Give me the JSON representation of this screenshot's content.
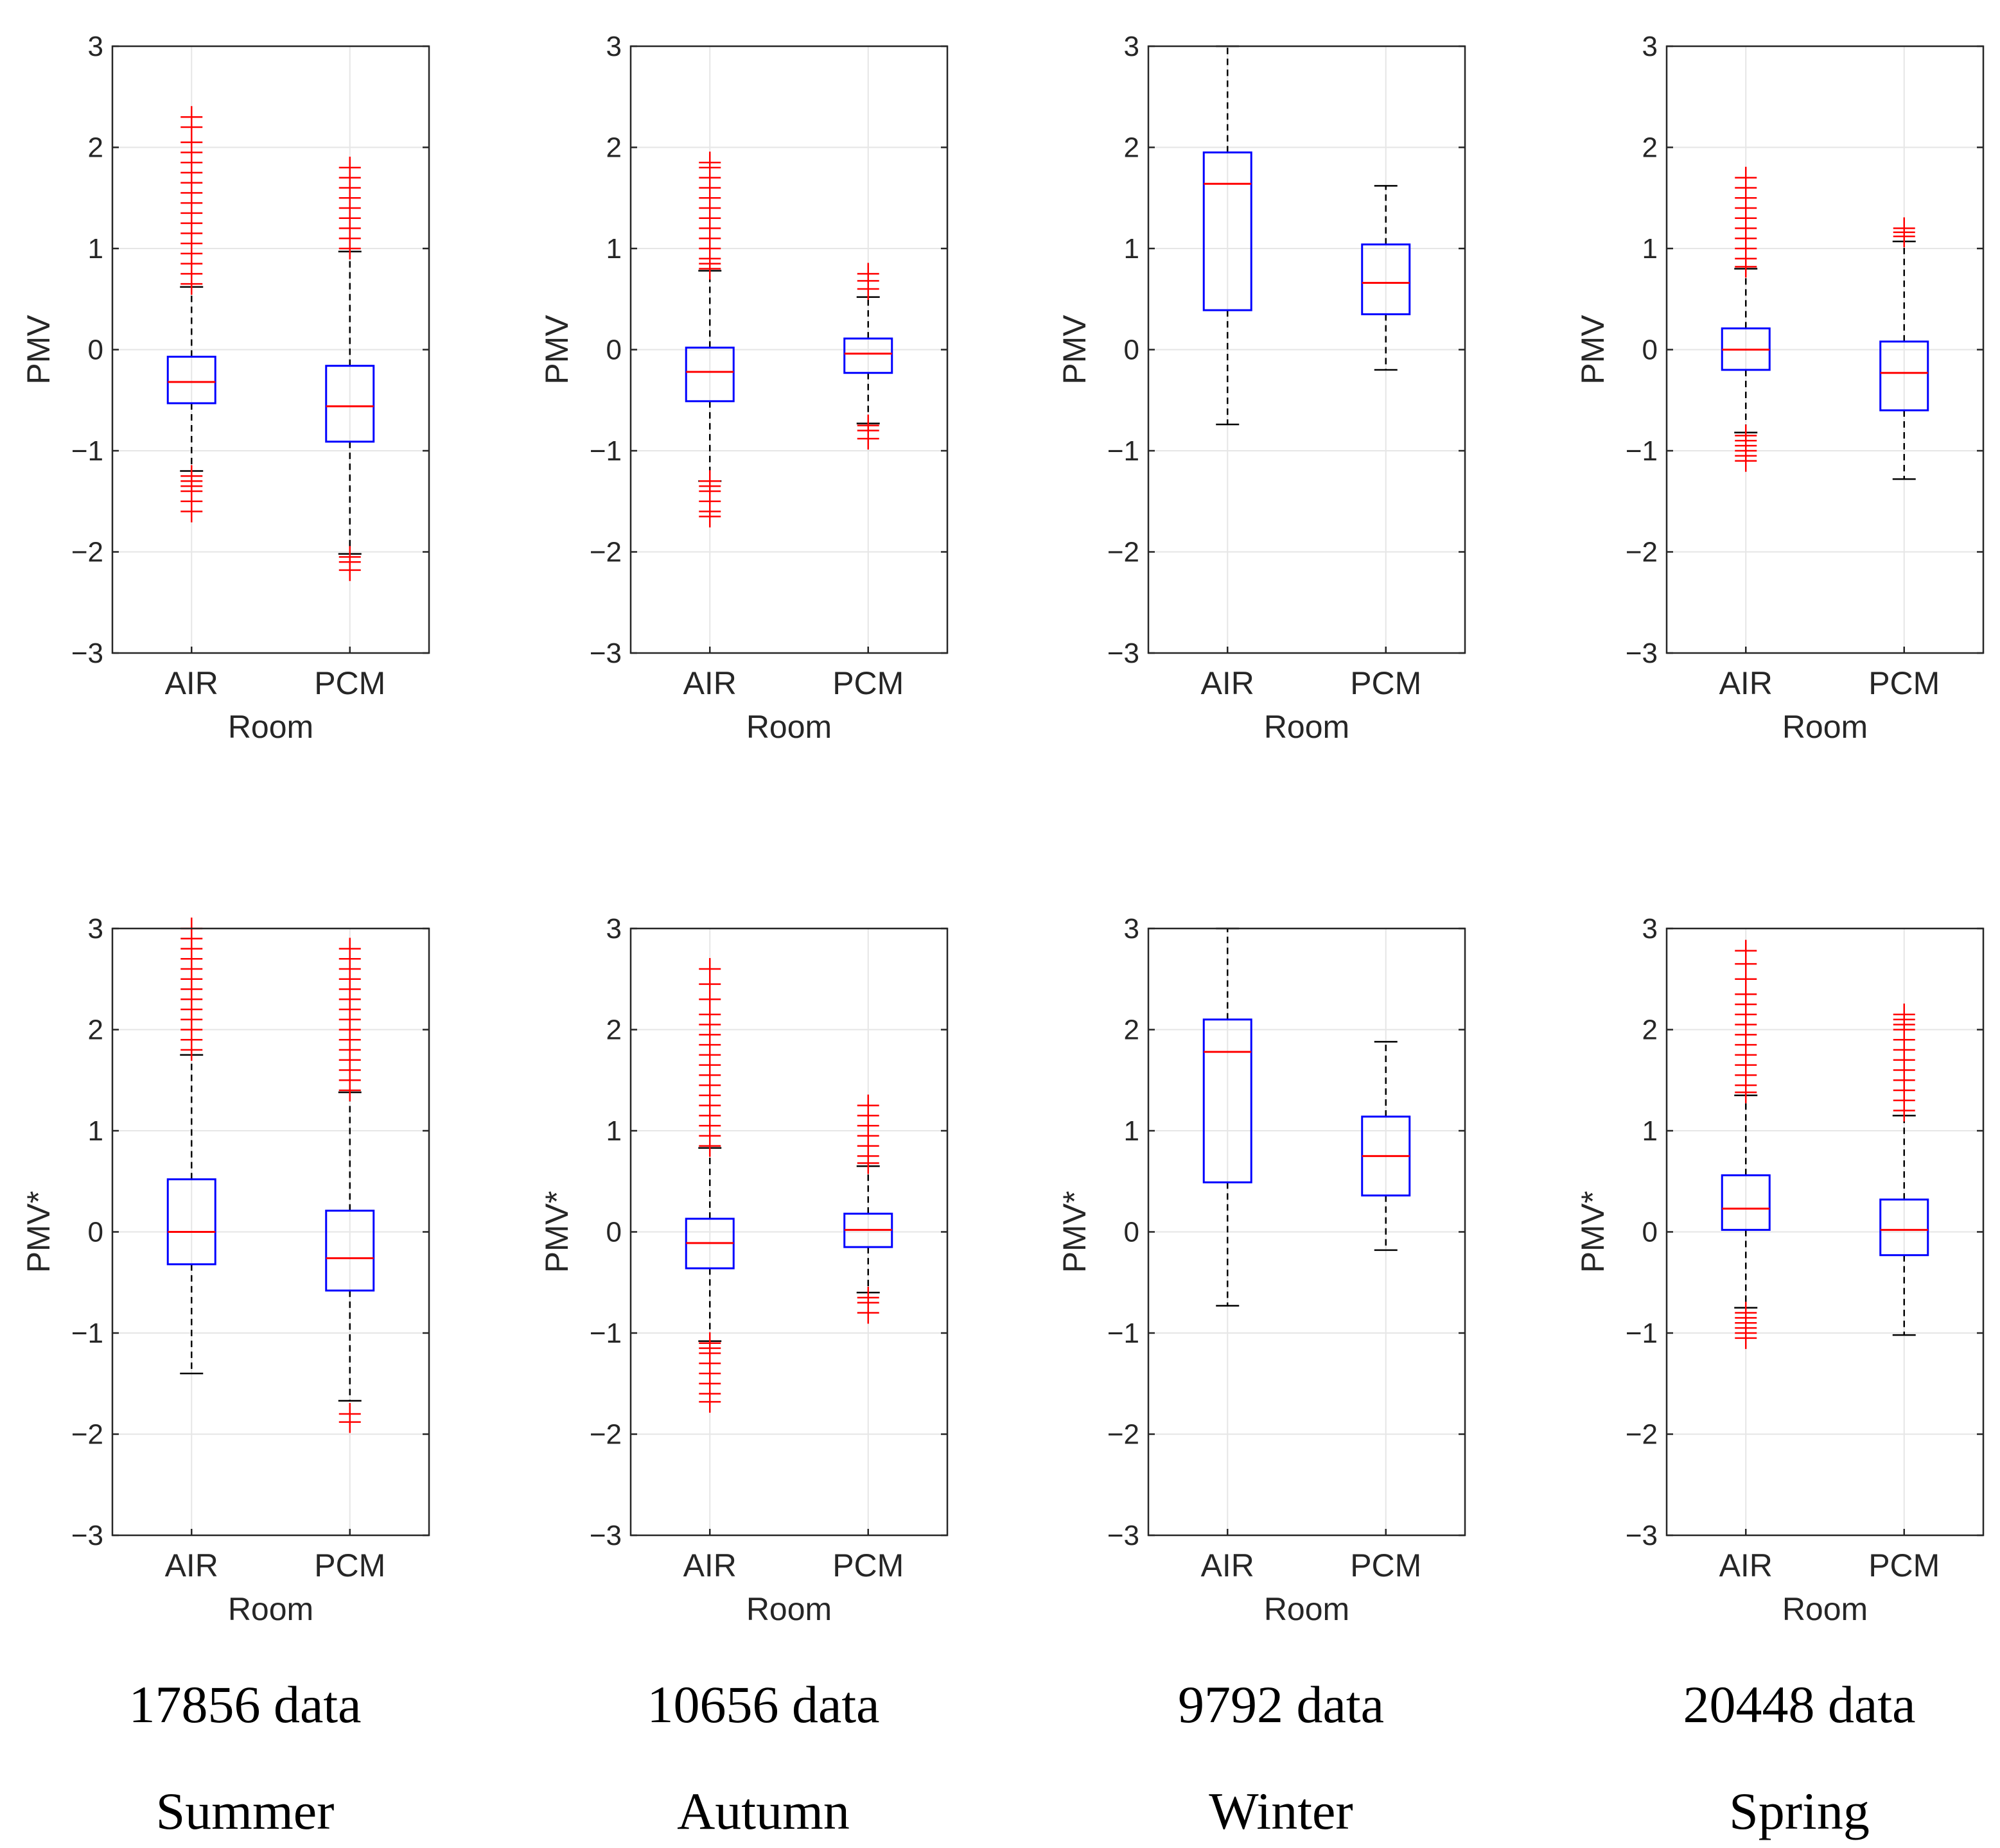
{
  "figure": {
    "columns": [
      {
        "count_label": "17856 data",
        "season": "Summer"
      },
      {
        "count_label": "10656 data",
        "season": "Autumn"
      },
      {
        "count_label": "9792 data",
        "season": "Winter"
      },
      {
        "count_label": "20448 data",
        "season": "Spring"
      }
    ]
  },
  "chart_data": [
    {
      "type": "box",
      "panel": "summer-pmv",
      "season": "Summer",
      "ylabel": "PMV",
      "xlabel": "Room",
      "categories": [
        "AIR",
        "PCM"
      ],
      "ylim": [
        -3,
        3
      ],
      "yticks": [
        "−3",
        "−2",
        "−1",
        "0",
        "1",
        "2",
        "3"
      ],
      "grid": true,
      "boxes": [
        {
          "name": "AIR",
          "whisker_low": -1.2,
          "q1": -0.53,
          "median": -0.32,
          "q3": -0.07,
          "whisker_high": 0.62,
          "outliers_high": [
            0.65,
            0.75,
            0.85,
            0.95,
            1.05,
            1.15,
            1.25,
            1.35,
            1.45,
            1.55,
            1.65,
            1.75,
            1.85,
            1.95,
            2.05,
            2.2,
            2.3
          ],
          "outliers_low": [
            -1.25,
            -1.3,
            -1.35,
            -1.4,
            -1.5,
            -1.6
          ]
        },
        {
          "name": "PCM",
          "whisker_low": -2.02,
          "q1": -0.91,
          "median": -0.56,
          "q3": -0.16,
          "whisker_high": 0.97,
          "outliers_high": [
            1.0,
            1.1,
            1.2,
            1.3,
            1.4,
            1.5,
            1.6,
            1.7,
            1.8
          ],
          "outliers_low": [
            -2.05,
            -2.1,
            -2.18
          ]
        }
      ]
    },
    {
      "type": "box",
      "panel": "autumn-pmv",
      "season": "Autumn",
      "ylabel": "PMV",
      "xlabel": "Room",
      "categories": [
        "AIR",
        "PCM"
      ],
      "ylim": [
        -3,
        3
      ],
      "yticks": [
        "−3",
        "−2",
        "−1",
        "0",
        "1",
        "2",
        "3"
      ],
      "grid": true,
      "boxes": [
        {
          "name": "AIR",
          "whisker_low": -1.3,
          "q1": -0.51,
          "median": -0.22,
          "q3": 0.02,
          "whisker_high": 0.78,
          "outliers_high": [
            0.8,
            0.85,
            0.9,
            1.0,
            1.1,
            1.2,
            1.3,
            1.4,
            1.5,
            1.6,
            1.7,
            1.8,
            1.85
          ],
          "outliers_low": [
            -1.3,
            -1.35,
            -1.4,
            -1.5,
            -1.6,
            -1.65
          ]
        },
        {
          "name": "PCM",
          "whisker_low": -0.73,
          "q1": -0.23,
          "median": -0.04,
          "q3": 0.11,
          "whisker_high": 0.52,
          "outliers_high": [
            0.6,
            0.68,
            0.75
          ],
          "outliers_low": [
            -0.75,
            -0.8,
            -0.88
          ]
        }
      ]
    },
    {
      "type": "box",
      "panel": "winter-pmv",
      "season": "Winter",
      "ylabel": "PMV",
      "xlabel": "Room",
      "categories": [
        "AIR",
        "PCM"
      ],
      "ylim": [
        -3,
        3
      ],
      "yticks": [
        "−3",
        "−2",
        "−1",
        "0",
        "1",
        "2",
        "3"
      ],
      "grid": true,
      "boxes": [
        {
          "name": "AIR",
          "whisker_low": -0.74,
          "q1": 0.39,
          "median": 1.64,
          "q3": 1.95,
          "whisker_high": 3.0,
          "outliers_high": [],
          "outliers_low": []
        },
        {
          "name": "PCM",
          "whisker_low": -0.2,
          "q1": 0.35,
          "median": 0.66,
          "q3": 1.04,
          "whisker_high": 1.62,
          "outliers_high": [],
          "outliers_low": []
        }
      ]
    },
    {
      "type": "box",
      "panel": "spring-pmv",
      "season": "Spring",
      "ylabel": "PMV",
      "xlabel": "Room",
      "categories": [
        "AIR",
        "PCM"
      ],
      "ylim": [
        -3,
        3
      ],
      "yticks": [
        "−3",
        "−2",
        "−1",
        "0",
        "1",
        "2",
        "3"
      ],
      "grid": true,
      "boxes": [
        {
          "name": "AIR",
          "whisker_low": -0.82,
          "q1": -0.2,
          "median": 0.0,
          "q3": 0.21,
          "whisker_high": 0.8,
          "outliers_high": [
            0.82,
            0.9,
            1.0,
            1.1,
            1.2,
            1.3,
            1.4,
            1.5,
            1.6,
            1.7
          ],
          "outliers_low": [
            -0.85,
            -0.9,
            -0.95,
            -1.0,
            -1.05,
            -1.1
          ]
        },
        {
          "name": "PCM",
          "whisker_low": -1.28,
          "q1": -0.6,
          "median": -0.23,
          "q3": 0.08,
          "whisker_high": 1.07,
          "outliers_high": [
            1.12,
            1.16,
            1.2
          ],
          "outliers_low": []
        }
      ]
    },
    {
      "type": "box",
      "panel": "summer-pmv-star",
      "season": "Summer",
      "ylabel": "PMV*",
      "xlabel": "Room",
      "categories": [
        "AIR",
        "PCM"
      ],
      "ylim": [
        -3,
        3
      ],
      "yticks": [
        "−3",
        "−2",
        "−1",
        "0",
        "1",
        "2",
        "3"
      ],
      "grid": true,
      "boxes": [
        {
          "name": "AIR",
          "whisker_low": -1.4,
          "q1": -0.32,
          "median": 0.0,
          "q3": 0.52,
          "whisker_high": 1.75,
          "outliers_high": [
            1.8,
            1.9,
            2.0,
            2.1,
            2.2,
            2.3,
            2.4,
            2.5,
            2.6,
            2.7,
            2.8,
            2.9,
            3.0
          ],
          "outliers_low": []
        },
        {
          "name": "PCM",
          "whisker_low": -1.67,
          "q1": -0.58,
          "median": -0.26,
          "q3": 0.21,
          "whisker_high": 1.38,
          "outliers_high": [
            1.4,
            1.5,
            1.6,
            1.7,
            1.8,
            1.9,
            2.0,
            2.1,
            2.2,
            2.3,
            2.4,
            2.5,
            2.6,
            2.7,
            2.8
          ],
          "outliers_low": [
            -1.8,
            -1.88
          ]
        }
      ]
    },
    {
      "type": "box",
      "panel": "autumn-pmv-star",
      "season": "Autumn",
      "ylabel": "PMV*",
      "xlabel": "Room",
      "categories": [
        "AIR",
        "PCM"
      ],
      "ylim": [
        -3,
        3
      ],
      "yticks": [
        "−3",
        "−2",
        "−1",
        "0",
        "1",
        "2",
        "3"
      ],
      "grid": true,
      "boxes": [
        {
          "name": "AIR",
          "whisker_low": -1.08,
          "q1": -0.36,
          "median": -0.11,
          "q3": 0.13,
          "whisker_high": 0.83,
          "outliers_high": [
            0.85,
            0.95,
            1.05,
            1.15,
            1.25,
            1.35,
            1.45,
            1.55,
            1.65,
            1.75,
            1.85,
            1.95,
            2.05,
            2.15,
            2.3,
            2.45,
            2.6
          ],
          "outliers_low": [
            -1.1,
            -1.15,
            -1.2,
            -1.3,
            -1.4,
            -1.5,
            -1.6,
            -1.68
          ]
        },
        {
          "name": "PCM",
          "whisker_low": -0.6,
          "q1": -0.15,
          "median": 0.02,
          "q3": 0.18,
          "whisker_high": 0.65,
          "outliers_high": [
            0.68,
            0.75,
            0.85,
            0.95,
            1.05,
            1.15,
            1.25
          ],
          "outliers_low": [
            -0.65,
            -0.7,
            -0.8
          ]
        }
      ]
    },
    {
      "type": "box",
      "panel": "winter-pmv-star",
      "season": "Winter",
      "ylabel": "PMV*",
      "xlabel": "Room",
      "categories": [
        "AIR",
        "PCM"
      ],
      "ylim": [
        -3,
        3
      ],
      "yticks": [
        "−3",
        "−2",
        "−1",
        "0",
        "1",
        "2",
        "3"
      ],
      "grid": true,
      "boxes": [
        {
          "name": "AIR",
          "whisker_low": -0.73,
          "q1": 0.49,
          "median": 1.78,
          "q3": 2.1,
          "whisker_high": 3.0,
          "outliers_high": [],
          "outliers_low": []
        },
        {
          "name": "PCM",
          "whisker_low": -0.18,
          "q1": 0.36,
          "median": 0.75,
          "q3": 1.14,
          "whisker_high": 1.88,
          "outliers_high": [],
          "outliers_low": []
        }
      ]
    },
    {
      "type": "box",
      "panel": "spring-pmv-star",
      "season": "Spring",
      "ylabel": "PMV*",
      "xlabel": "Room",
      "categories": [
        "AIR",
        "PCM"
      ],
      "ylim": [
        -3,
        3
      ],
      "yticks": [
        "−3",
        "−2",
        "−1",
        "0",
        "1",
        "2",
        "3"
      ],
      "grid": true,
      "boxes": [
        {
          "name": "AIR",
          "whisker_low": -0.75,
          "q1": 0.02,
          "median": 0.23,
          "q3": 0.56,
          "whisker_high": 1.35,
          "outliers_high": [
            1.38,
            1.45,
            1.55,
            1.65,
            1.75,
            1.85,
            1.95,
            2.05,
            2.15,
            2.25,
            2.35,
            2.5,
            2.65,
            2.78
          ],
          "outliers_low": [
            -0.8,
            -0.85,
            -0.9,
            -0.95,
            -1.0,
            -1.05
          ]
        },
        {
          "name": "PCM",
          "whisker_low": -1.02,
          "q1": -0.23,
          "median": 0.02,
          "q3": 0.32,
          "whisker_high": 1.15,
          "outliers_high": [
            1.2,
            1.3,
            1.4,
            1.5,
            1.6,
            1.7,
            1.8,
            1.9,
            2.0,
            2.05,
            2.1,
            2.15
          ],
          "outliers_low": []
        }
      ]
    }
  ]
}
